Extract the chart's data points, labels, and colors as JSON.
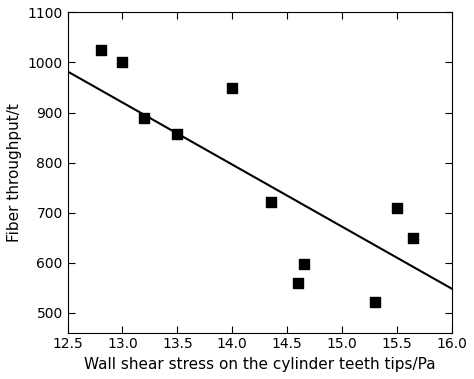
{
  "x_data": [
    12.8,
    13.0,
    13.2,
    13.5,
    14.0,
    14.35,
    14.6,
    14.65,
    15.3,
    15.5,
    15.65
  ],
  "y_data": [
    1025,
    1000,
    890,
    858,
    948,
    722,
    560,
    598,
    522,
    710,
    650
  ],
  "trendline_x": [
    12.5,
    16.0
  ],
  "trendline_y": [
    982,
    548
  ],
  "xlim": [
    12.5,
    16.0
  ],
  "ylim": [
    460,
    1100
  ],
  "xticks": [
    12.5,
    13.0,
    13.5,
    14.0,
    14.5,
    15.0,
    15.5,
    16.0
  ],
  "yticks": [
    500,
    600,
    700,
    800,
    900,
    1000,
    1100
  ],
  "xlabel": "Wall shear stress on the cylinder teeth tips/Pa",
  "ylabel": "Fiber throughput/t",
  "marker": "s",
  "marker_color": "black",
  "marker_size": 45,
  "line_color": "black",
  "line_width": 1.5,
  "background_color": "#ffffff",
  "tick_fontsize": 10,
  "label_fontsize": 11
}
